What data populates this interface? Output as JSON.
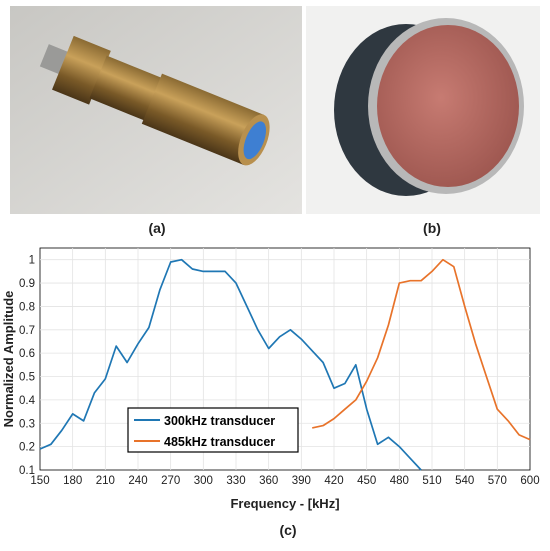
{
  "panels": {
    "a_label": "(a)",
    "b_label": "(b)",
    "c_label": "(c)"
  },
  "chart_data": {
    "type": "line",
    "xlabel": "Frequency - [kHz]",
    "ylabel": "Normalized Amplitude",
    "xlim": [
      150,
      600
    ],
    "ylim": [
      0.1,
      1.05
    ],
    "xticks": [
      150,
      180,
      210,
      240,
      270,
      300,
      330,
      360,
      390,
      420,
      450,
      480,
      510,
      540,
      570,
      600
    ],
    "yticks": [
      0.1,
      0.2,
      0.3,
      0.4,
      0.5,
      0.6,
      0.7,
      0.8,
      0.9,
      1
    ],
    "grid": true,
    "legend_position": "bottom-left",
    "series": [
      {
        "name": "300kHz transducer",
        "color": "#1f77b4",
        "x": [
          150,
          160,
          170,
          180,
          190,
          200,
          210,
          220,
          230,
          240,
          250,
          260,
          270,
          280,
          290,
          300,
          310,
          320,
          330,
          340,
          350,
          360,
          370,
          380,
          390,
          400,
          410,
          420,
          430,
          440,
          450,
          460,
          470,
          480,
          490,
          500
        ],
        "y": [
          0.19,
          0.21,
          0.27,
          0.34,
          0.31,
          0.43,
          0.49,
          0.63,
          0.56,
          0.64,
          0.71,
          0.87,
          0.99,
          1.0,
          0.96,
          0.95,
          0.95,
          0.95,
          0.9,
          0.8,
          0.7,
          0.62,
          0.67,
          0.7,
          0.66,
          0.61,
          0.56,
          0.45,
          0.47,
          0.55,
          0.36,
          0.21,
          0.24,
          0.2,
          0.15,
          0.1
        ]
      },
      {
        "name": "485kHz transducer",
        "color": "#e8732a",
        "x": [
          400,
          410,
          420,
          430,
          440,
          450,
          460,
          470,
          480,
          490,
          500,
          510,
          520,
          530,
          540,
          550,
          560,
          570,
          580,
          590,
          600
        ],
        "y": [
          0.28,
          0.29,
          0.32,
          0.36,
          0.4,
          0.48,
          0.58,
          0.72,
          0.9,
          0.91,
          0.91,
          0.95,
          1.0,
          0.97,
          0.8,
          0.64,
          0.5,
          0.36,
          0.31,
          0.25,
          0.23
        ]
      }
    ]
  }
}
